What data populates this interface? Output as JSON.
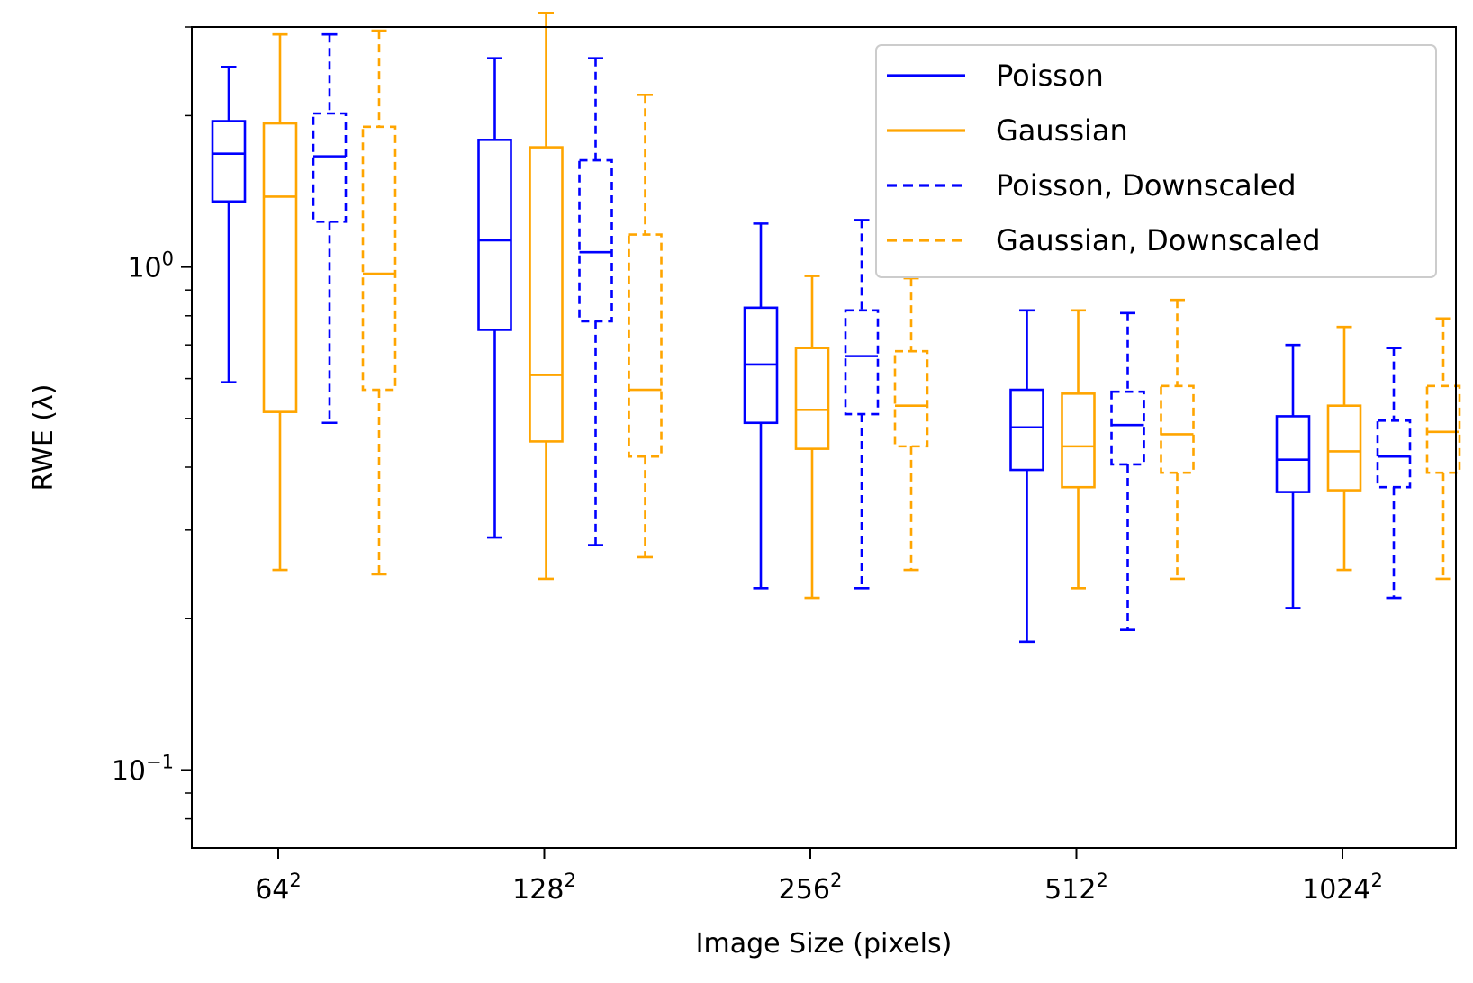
{
  "chart_data": {
    "type": "box",
    "xlabel": "Image Size (pixels)",
    "ylabel": "RWE (λ)",
    "yscale": "log",
    "ylim": [
      0.07,
      3.0
    ],
    "yticks": [
      {
        "value": 1.0,
        "base": "10",
        "exp": "0"
      },
      {
        "value": 0.1,
        "base": "10",
        "exp": "−1"
      }
    ],
    "categories": [
      {
        "base": "64",
        "exp": "2"
      },
      {
        "base": "128",
        "exp": "2"
      },
      {
        "base": "256",
        "exp": "2"
      },
      {
        "base": "512",
        "exp": "2"
      },
      {
        "base": "1024",
        "exp": "2"
      }
    ],
    "legend_position": "upper right",
    "series": [
      {
        "name": "Poisson",
        "color": "#0000ff",
        "dashed": false,
        "boxes": [
          {
            "whislo": 0.59,
            "q1": 1.35,
            "med": 1.68,
            "q3": 1.95,
            "whishi": 2.5
          },
          {
            "whislo": 0.29,
            "q1": 0.75,
            "med": 1.13,
            "q3": 1.79,
            "whishi": 2.6
          },
          {
            "whislo": 0.23,
            "q1": 0.49,
            "med": 0.64,
            "q3": 0.83,
            "whishi": 1.22
          },
          {
            "whislo": 0.18,
            "q1": 0.395,
            "med": 0.48,
            "q3": 0.57,
            "whishi": 0.82
          },
          {
            "whislo": 0.21,
            "q1": 0.357,
            "med": 0.414,
            "q3": 0.505,
            "whishi": 0.7
          }
        ]
      },
      {
        "name": "Gaussian",
        "color": "#ffa500",
        "dashed": false,
        "boxes": [
          {
            "whislo": 0.25,
            "q1": 0.515,
            "med": 1.38,
            "q3": 1.93,
            "whishi": 2.9
          },
          {
            "whislo": 0.24,
            "q1": 0.45,
            "med": 0.61,
            "q3": 1.73,
            "whishi": 3.2
          },
          {
            "whislo": 0.22,
            "q1": 0.435,
            "med": 0.52,
            "q3": 0.69,
            "whishi": 0.96
          },
          {
            "whislo": 0.23,
            "q1": 0.365,
            "med": 0.44,
            "q3": 0.56,
            "whishi": 0.82
          },
          {
            "whislo": 0.25,
            "q1": 0.36,
            "med": 0.43,
            "q3": 0.53,
            "whishi": 0.76
          }
        ]
      },
      {
        "name": "Poisson, Downscaled",
        "color": "#0000ff",
        "dashed": true,
        "boxes": [
          {
            "whislo": 0.49,
            "q1": 1.23,
            "med": 1.66,
            "q3": 2.02,
            "whishi": 2.9
          },
          {
            "whislo": 0.28,
            "q1": 0.78,
            "med": 1.07,
            "q3": 1.63,
            "whishi": 2.6
          },
          {
            "whislo": 0.23,
            "q1": 0.51,
            "med": 0.665,
            "q3": 0.82,
            "whishi": 1.24
          },
          {
            "whislo": 0.19,
            "q1": 0.405,
            "med": 0.485,
            "q3": 0.565,
            "whishi": 0.81
          },
          {
            "whislo": 0.22,
            "q1": 0.365,
            "med": 0.42,
            "q3": 0.495,
            "whishi": 0.69
          }
        ]
      },
      {
        "name": "Gaussian, Downscaled",
        "color": "#ffa500",
        "dashed": true,
        "boxes": [
          {
            "whislo": 0.245,
            "q1": 0.57,
            "med": 0.97,
            "q3": 1.9,
            "whishi": 2.95
          },
          {
            "whislo": 0.265,
            "q1": 0.42,
            "med": 0.57,
            "q3": 1.16,
            "whishi": 2.2
          },
          {
            "whislo": 0.25,
            "q1": 0.44,
            "med": 0.53,
            "q3": 0.68,
            "whishi": 0.95
          },
          {
            "whislo": 0.24,
            "q1": 0.39,
            "med": 0.465,
            "q3": 0.58,
            "whishi": 0.86
          },
          {
            "whislo": 0.24,
            "q1": 0.39,
            "med": 0.47,
            "q3": 0.58,
            "whishi": 0.79
          }
        ]
      }
    ]
  }
}
